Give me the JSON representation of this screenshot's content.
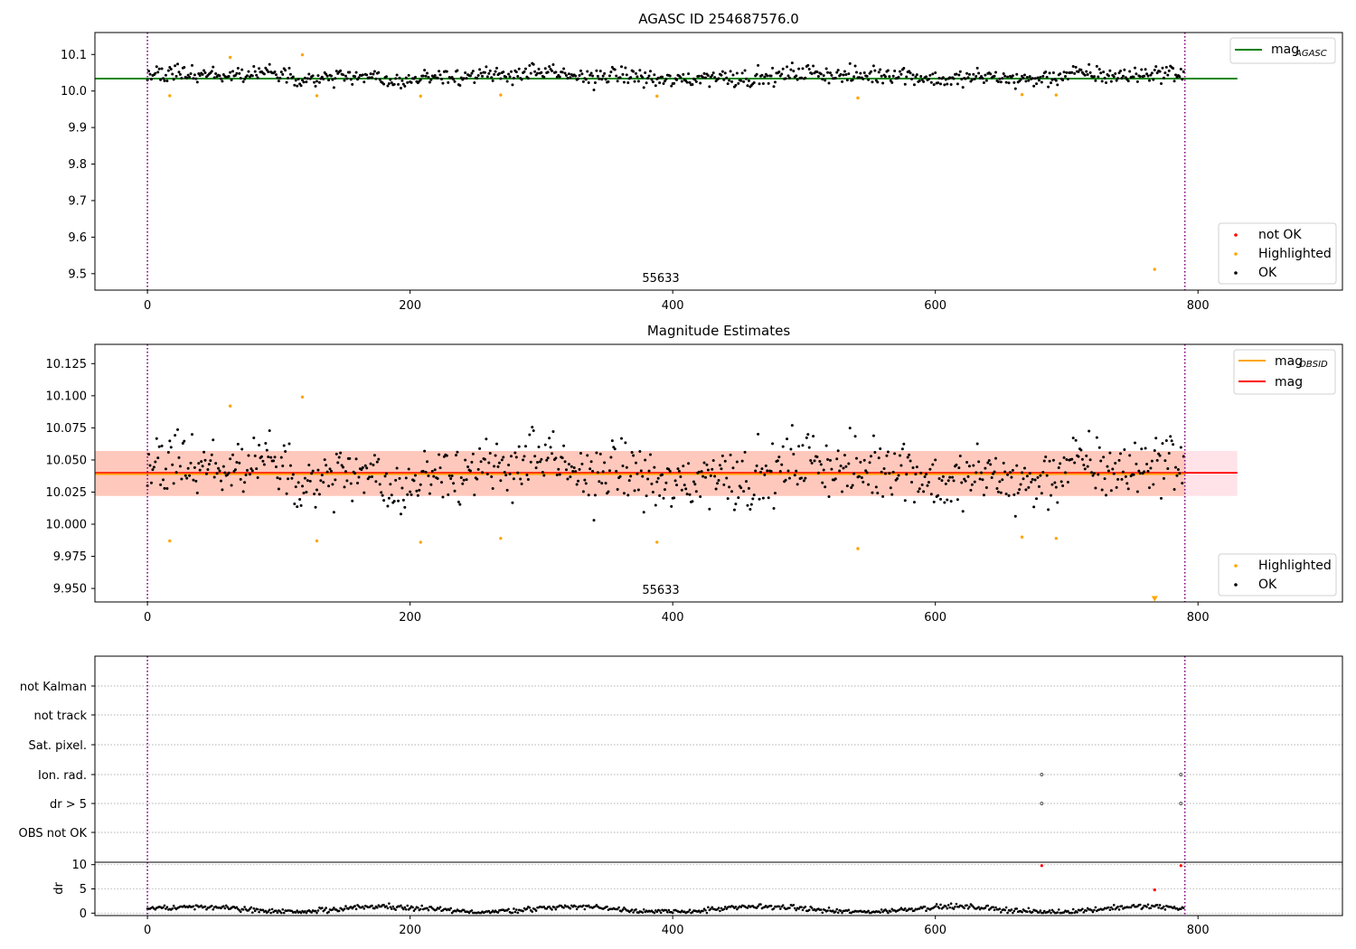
{
  "chart_data": [
    {
      "type": "scatter",
      "title": "AGASC ID 254687576.0",
      "xlabel": "",
      "ylabel": "",
      "xlim": [
        -40,
        910
      ],
      "ylim": [
        9.455,
        10.16
      ],
      "xticks": [
        0,
        200,
        400,
        600,
        800
      ],
      "yticks": [
        9.5,
        9.6,
        9.7,
        9.8,
        9.9,
        10.0,
        10.1
      ],
      "ytick_labels": [
        "9.5",
        "9.6",
        "9.7",
        "9.8",
        "9.9",
        "10.0",
        "10.1"
      ],
      "hlines": [
        {
          "name": "mag_AGASC",
          "y": 10.034,
          "x_range": [
            -40,
            830
          ],
          "color": "#008000"
        }
      ],
      "vlines": [
        {
          "x": 0,
          "color": "#800080",
          "style": "dotted"
        },
        {
          "x": 790,
          "color": "#800080",
          "style": "dotted"
        }
      ],
      "annotation": {
        "text": "55633",
        "x": 395,
        "y": 9.475
      },
      "legends": [
        {
          "position": "top-right",
          "entries": [
            {
              "label": "mag",
              "sub": "AGASC",
              "kind": "line",
              "color": "#008000"
            }
          ]
        },
        {
          "position": "bottom-right",
          "entries": [
            {
              "label": "not OK",
              "kind": "marker",
              "color": "#ff0000"
            },
            {
              "label": "Highlighted",
              "kind": "marker",
              "color": "#ffa500"
            },
            {
              "label": "OK",
              "kind": "marker",
              "color": "#000000"
            }
          ]
        }
      ],
      "series": [
        {
          "name": "Highlighted",
          "color": "#ffa500",
          "x": [
            17,
            63,
            118,
            129,
            208,
            269,
            388,
            541,
            666,
            692,
            767
          ],
          "y": [
            9.987,
            10.092,
            10.099,
            9.987,
            9.986,
            9.989,
            9.986,
            9.981,
            9.99,
            9.989,
            9.512
          ]
        },
        {
          "name": "OK",
          "color": "#000000",
          "generated_from": "envelope",
          "x_range": [
            0,
            790
          ],
          "count": 790,
          "y_mean": 10.04,
          "y_spread": 0.017
        }
      ]
    },
    {
      "type": "scatter",
      "title": "Magnitude Estimates",
      "xlabel": "",
      "ylabel": "",
      "xlim": [
        -40,
        910
      ],
      "ylim": [
        9.9395,
        10.14
      ],
      "xticks": [
        0,
        200,
        400,
        600,
        800
      ],
      "yticks": [
        9.95,
        9.975,
        10.0,
        10.025,
        10.05,
        10.075,
        10.1,
        10.125
      ],
      "ytick_labels": [
        "9.950",
        "9.975",
        "10.000",
        "10.025",
        "10.050",
        "10.075",
        "10.100",
        "10.125"
      ],
      "bands": [
        {
          "y_range": [
            10.022,
            10.057
          ],
          "x_range": [
            -40,
            830
          ],
          "color": "#ffc0cb",
          "opacity": 0.45
        },
        {
          "y_range": [
            10.022,
            10.057
          ],
          "x_range": [
            -40,
            790
          ],
          "color": "#ffa07a",
          "opacity": 0.4
        }
      ],
      "hlines": [
        {
          "name": "mag",
          "y": 10.04,
          "x_range": [
            -40,
            830
          ],
          "color": "#ff0000"
        },
        {
          "name": "mag_OBSID",
          "y": 10.039,
          "x_range": [
            -40,
            790
          ],
          "color": "#ffa500"
        }
      ],
      "vlines": [
        {
          "x": 0,
          "color": "#800080",
          "style": "dotted"
        },
        {
          "x": 790,
          "color": "#800080",
          "style": "dotted"
        }
      ],
      "annotation": {
        "text": "55633",
        "x": 395,
        "y": 9.9445
      },
      "legends": [
        {
          "position": "top-right",
          "entries": [
            {
              "label": "mag",
              "sub": "OBSID",
              "kind": "line",
              "color": "#ffa500"
            },
            {
              "label": "mag",
              "kind": "line",
              "color": "#ff0000"
            }
          ]
        },
        {
          "position": "bottom-right",
          "entries": [
            {
              "label": "Highlighted",
              "kind": "marker",
              "color": "#ffa500"
            },
            {
              "label": "OK",
              "kind": "marker",
              "color": "#000000"
            }
          ]
        }
      ],
      "series": [
        {
          "name": "Highlighted",
          "color": "#ffa500",
          "x": [
            17,
            63,
            118,
            129,
            208,
            269,
            388,
            541,
            666,
            692
          ],
          "y": [
            9.987,
            10.092,
            10.099,
            9.987,
            9.986,
            9.989,
            9.986,
            9.981,
            9.99,
            9.989
          ]
        },
        {
          "name": "OK",
          "color": "#000000",
          "generated_from": "envelope",
          "x_range": [
            0,
            790
          ],
          "count": 790,
          "y_mean": 10.04,
          "y_spread": 0.017
        },
        {
          "name": "off-scale",
          "color": "#ffa500",
          "marker": "triangle-down",
          "x": [
            767
          ],
          "y": [
            9.942
          ]
        }
      ]
    },
    {
      "type": "scatter",
      "title": "",
      "xlabel": "",
      "ylabel": "",
      "xlim": [
        -40,
        910
      ],
      "categories": [
        "OBS not OK",
        "dr > 5",
        "Ion. rad.",
        "Sat. pixel.",
        "not track",
        "not Kalman"
      ],
      "vlines": [
        {
          "x": 0,
          "color": "#800080",
          "style": "dotted"
        },
        {
          "x": 790,
          "color": "#800080",
          "style": "dotted"
        }
      ],
      "flags": [
        {
          "category": "Ion. rad.",
          "x": [
            681,
            787
          ]
        },
        {
          "category": "dr > 5",
          "x": [
            681,
            787
          ]
        }
      ]
    },
    {
      "type": "scatter",
      "title": "",
      "xlabel": "",
      "ylabel": "dr",
      "xlim": [
        -40,
        910
      ],
      "ylim": [
        -0.5,
        10.5
      ],
      "xticks": [
        0,
        200,
        400,
        600,
        800
      ],
      "yticks": [
        0,
        5,
        10
      ],
      "ytick_labels": [
        "0",
        "5",
        "10"
      ],
      "vlines": [
        {
          "x": 0,
          "color": "#800080",
          "style": "dotted"
        },
        {
          "x": 790,
          "color": "#800080",
          "style": "dotted"
        }
      ],
      "series": [
        {
          "name": "not OK",
          "color": "#ff0000",
          "x": [
            681,
            767,
            787
          ],
          "y": [
            9.8,
            4.8,
            9.8
          ]
        },
        {
          "name": "OK",
          "color": "#000000",
          "generated_from": "envelope",
          "x_range": [
            0,
            790
          ],
          "count": 790,
          "y_mean": 0.9,
          "y_spread": 0.5
        }
      ]
    }
  ]
}
